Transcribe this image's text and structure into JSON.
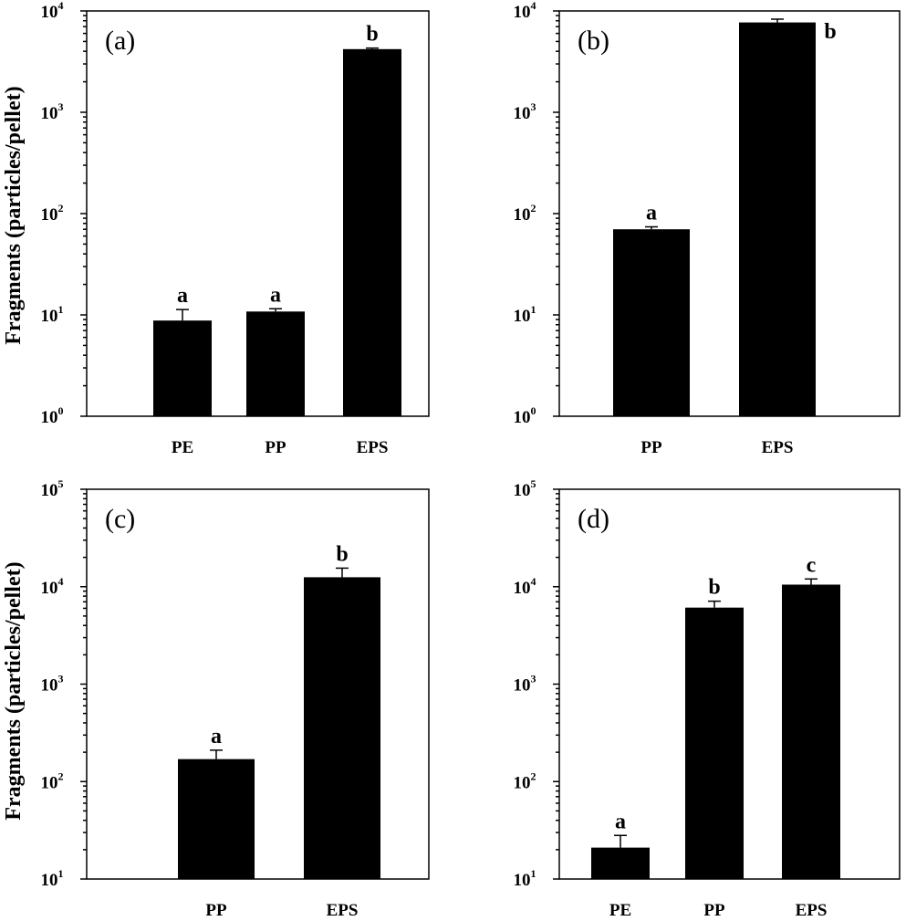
{
  "y_axis_title": "Fragments (particles/pellet)",
  "chart_data": [
    {
      "type": "bar",
      "panel": "(a)",
      "yscale": "log",
      "ylim": [
        1,
        10000
      ],
      "y_ticks": [
        {
          "base": "10",
          "exp": "0"
        },
        {
          "base": "10",
          "exp": "1"
        },
        {
          "base": "10",
          "exp": "2"
        },
        {
          "base": "10",
          "exp": "3"
        },
        {
          "base": "10",
          "exp": "4"
        }
      ],
      "ylabel": "Fragments (particles/pellet)",
      "categories": [
        "PE",
        "PP",
        "EPS"
      ],
      "values": [
        8.8,
        10.8,
        4200
      ],
      "errors_upper": [
        11.3,
        11.5,
        4300
      ],
      "significance": [
        "a",
        "a",
        "b"
      ]
    },
    {
      "type": "bar",
      "panel": "(b)",
      "yscale": "log",
      "ylim": [
        1,
        10000
      ],
      "y_ticks": [
        {
          "base": "10",
          "exp": "0"
        },
        {
          "base": "10",
          "exp": "1"
        },
        {
          "base": "10",
          "exp": "2"
        },
        {
          "base": "10",
          "exp": "3"
        },
        {
          "base": "10",
          "exp": "4"
        }
      ],
      "ylabel": "",
      "categories": [
        "PP",
        "EPS"
      ],
      "values": [
        70,
        7700
      ],
      "errors_upper": [
        74,
        8300
      ],
      "significance": [
        "a",
        "b"
      ]
    },
    {
      "type": "bar",
      "panel": "(c)",
      "yscale": "log",
      "ylim": [
        10,
        100000
      ],
      "y_ticks": [
        {
          "base": "10",
          "exp": "1"
        },
        {
          "base": "10",
          "exp": "2"
        },
        {
          "base": "10",
          "exp": "3"
        },
        {
          "base": "10",
          "exp": "4"
        },
        {
          "base": "10",
          "exp": "5"
        }
      ],
      "ylabel": "Fragments (particles/pellet)",
      "categories": [
        "PP",
        "EPS"
      ],
      "values": [
        170,
        12500
      ],
      "errors_upper": [
        210,
        15500
      ],
      "significance": [
        "a",
        "b"
      ]
    },
    {
      "type": "bar",
      "panel": "(d)",
      "yscale": "log",
      "ylim": [
        10,
        100000
      ],
      "y_ticks": [
        {
          "base": "10",
          "exp": "1"
        },
        {
          "base": "10",
          "exp": "2"
        },
        {
          "base": "10",
          "exp": "3"
        },
        {
          "base": "10",
          "exp": "4"
        },
        {
          "base": "10",
          "exp": "5"
        }
      ],
      "ylabel": "",
      "categories": [
        "PE",
        "PP",
        "EPS"
      ],
      "values": [
        21,
        6100,
        10500
      ],
      "errors_upper": [
        28,
        7100,
        12000
      ],
      "significance": [
        "a",
        "b",
        "c"
      ]
    }
  ]
}
